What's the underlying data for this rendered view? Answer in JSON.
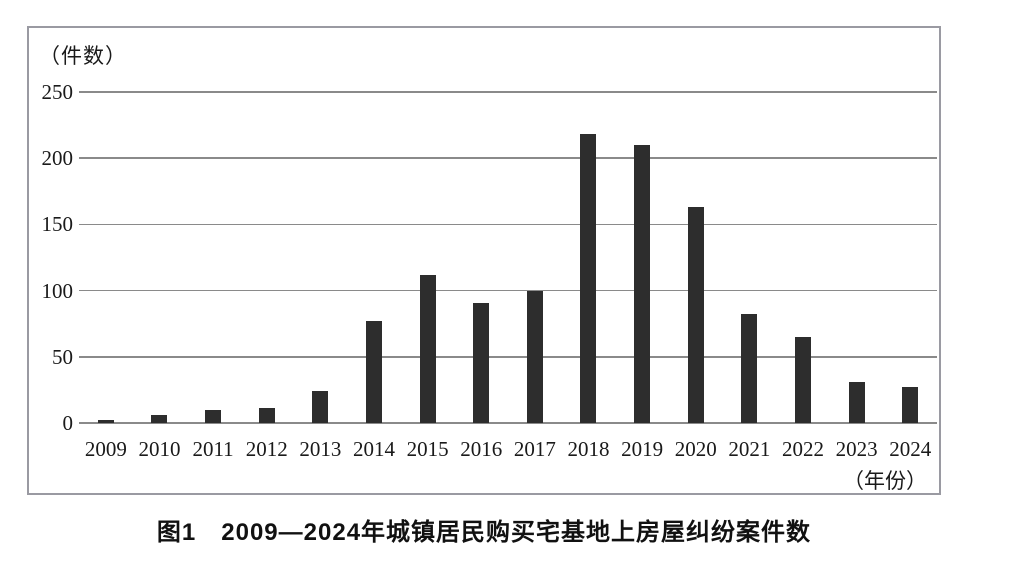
{
  "figure": {
    "y_axis_unit_label": "（件数）",
    "x_axis_unit_label": "（年份）",
    "caption": "图1　2009—2024年城镇居民购买宅基地上房屋纠纷案件数"
  },
  "chart_data": {
    "type": "bar",
    "title": "图1 2009—2024年城镇居民购买宅基地上房屋纠纷案件数",
    "ylabel": "（件数）",
    "xlabel": "（年份）",
    "categories": [
      "2009",
      "2010",
      "2011",
      "2012",
      "2013",
      "2014",
      "2015",
      "2016",
      "2017",
      "2018",
      "2019",
      "2020",
      "2021",
      "2022",
      "2023",
      "2024"
    ],
    "values": [
      2,
      6,
      10,
      11,
      24,
      77,
      112,
      91,
      100,
      218,
      210,
      163,
      82,
      65,
      31,
      27
    ],
    "ylim": [
      0,
      250
    ],
    "yticks": [
      0,
      50,
      100,
      150,
      200,
      250
    ],
    "grid": true,
    "legend": "none",
    "bar_color": "#2d2d2d",
    "gridline_color": "#8a8a8a",
    "frame_color": "#9a9aa2"
  }
}
